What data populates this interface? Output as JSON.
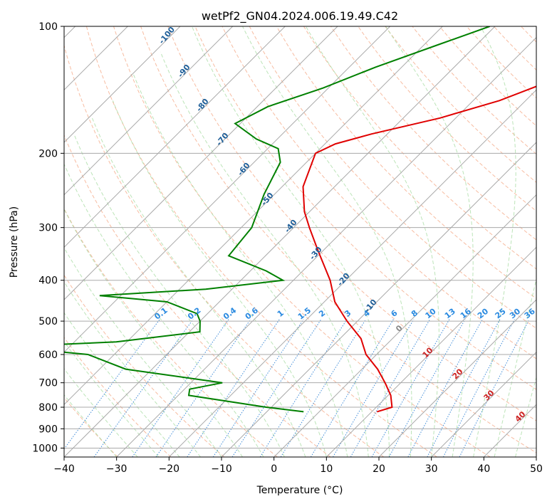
{
  "chart_data": {
    "type": "skew-t",
    "title": "wetPf2_GN04.2024.006.19.49.C42",
    "xlabel": "Temperature (°C)",
    "ylabel": "Pressure (hPa)",
    "xlim": [
      -40,
      50
    ],
    "ylim": [
      1050,
      100
    ],
    "y_scale": "log",
    "grid": true,
    "x_ticks": [
      -40,
      -30,
      -20,
      -10,
      0,
      10,
      20,
      30,
      40,
      50
    ],
    "y_ticks": [
      100,
      200,
      300,
      400,
      500,
      600,
      700,
      800,
      900,
      1000
    ],
    "series": [
      {
        "color": "#e00000",
        "points": [
          {
            "p": 100,
            "t": -7
          },
          {
            "p": 115,
            "t": -13
          },
          {
            "p": 130,
            "t": -17
          },
          {
            "p": 150,
            "t": -25
          },
          {
            "p": 165,
            "t": -33
          },
          {
            "p": 180,
            "t": -43
          },
          {
            "p": 190,
            "t": -48
          },
          {
            "p": 200,
            "t": -50
          },
          {
            "p": 240,
            "t": -46
          },
          {
            "p": 275,
            "t": -41
          },
          {
            "p": 300,
            "t": -37
          },
          {
            "p": 340,
            "t": -31
          },
          {
            "p": 400,
            "t": -23
          },
          {
            "p": 450,
            "t": -18
          },
          {
            "p": 500,
            "t": -12
          },
          {
            "p": 550,
            "t": -6
          },
          {
            "p": 600,
            "t": -2
          },
          {
            "p": 650,
            "t": 3
          },
          {
            "p": 700,
            "t": 7
          },
          {
            "p": 750,
            "t": 10.5
          },
          {
            "p": 800,
            "t": 13
          },
          {
            "p": 820,
            "t": 11
          }
        ]
      },
      {
        "color": "#008000",
        "points": [
          {
            "p": 100,
            "t": -41
          },
          {
            "p": 110,
            "t": -47
          },
          {
            "p": 125,
            "t": -55
          },
          {
            "p": 140,
            "t": -61
          },
          {
            "p": 155,
            "t": -68
          },
          {
            "p": 170,
            "t": -71
          },
          {
            "p": 185,
            "t": -64
          },
          {
            "p": 195,
            "t": -58
          },
          {
            "p": 210,
            "t": -55
          },
          {
            "p": 250,
            "t": -52
          },
          {
            "p": 300,
            "t": -48
          },
          {
            "p": 350,
            "t": -47
          },
          {
            "p": 380,
            "t": -37
          },
          {
            "p": 400,
            "t": -32
          },
          {
            "p": 420,
            "t": -45
          },
          {
            "p": 435,
            "t": -64
          },
          {
            "p": 450,
            "t": -50
          },
          {
            "p": 480,
            "t": -42
          },
          {
            "p": 500,
            "t": -40
          },
          {
            "p": 530,
            "t": -38
          },
          {
            "p": 560,
            "t": -52
          },
          {
            "p": 575,
            "t": -72
          },
          {
            "p": 600,
            "t": -55
          },
          {
            "p": 650,
            "t": -45
          },
          {
            "p": 700,
            "t": -24
          },
          {
            "p": 725,
            "t": -29
          },
          {
            "p": 750,
            "t": -28
          },
          {
            "p": 800,
            "t": -11
          },
          {
            "p": 820,
            "t": -3
          }
        ]
      }
    ],
    "mixing_ratio_labels": [
      "0.1",
      "0.2",
      "0.4",
      "0.6",
      "1",
      "1.5",
      "2",
      "3",
      "4",
      "6",
      "8",
      "10",
      "13",
      "16",
      "20",
      "25",
      "30",
      "36"
    ],
    "dry_adiabat_labels": [
      "-100",
      "-90",
      "-80",
      "-70",
      "-60",
      "-50",
      "-40",
      "-30",
      "-20",
      "-10"
    ],
    "moist_adiabat_labels": [
      "0",
      "10",
      "20",
      "30",
      "40"
    ],
    "colors": {
      "temperature": "#e00000",
      "dewpoint": "#008000",
      "isobar": "#aaaaaa",
      "isotherm": "#aaaaaa",
      "dry_adiabat": "#f4a582",
      "moist_adiabat": "#a6dba0",
      "mixing_ratio": "#1f78d1",
      "dry_label": "#1f5f99",
      "moist_label": "#cc2222",
      "mixing_label": "#2a8ae0"
    }
  }
}
